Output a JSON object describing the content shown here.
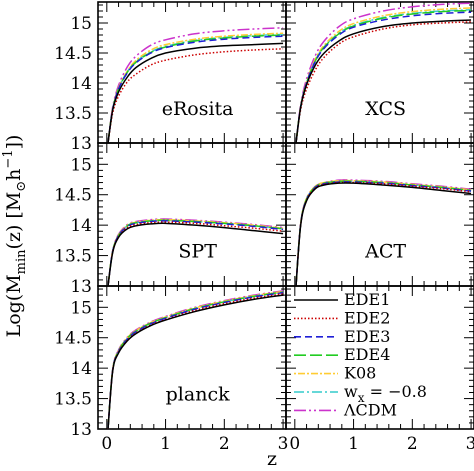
{
  "chart_data": {
    "type": "line",
    "ylabel": "Log(M_min(z) [M_⊙h⁻¹])",
    "ylabel_parts": {
      "pre": "Log(M",
      "sub": "min",
      "mid": "(z)  [M",
      "sun": "⊙",
      "h": "h",
      "sup": "−1",
      "post": "])"
    },
    "xlabel": "z",
    "xlim": [
      -0.15,
      3.05
    ],
    "ylim": [
      13.0,
      15.35
    ],
    "x_ticks": [
      "0",
      "1",
      "2",
      "3"
    ],
    "y_ticks": [
      "13",
      "13.5",
      "14",
      "14.5",
      "15"
    ],
    "grid": false,
    "legend_location": "bottom-right panel",
    "series_styles": [
      {
        "name": "EDE1",
        "color": "#000000",
        "dash": ""
      },
      {
        "name": "EDE2",
        "color": "#cc0000",
        "dash": "1.5,2"
      },
      {
        "name": "EDE3",
        "color": "#1f1fd6",
        "dash": "7,4"
      },
      {
        "name": "EDE4",
        "color": "#22cc22",
        "dash": "12,4"
      },
      {
        "name": "K08",
        "color": "#ffcc33",
        "dash": "2,2,7,2"
      },
      {
        "name": "w_x = −0.8",
        "color": "#33cccc",
        "dash": "10,3,2,3"
      },
      {
        "name": "ΛCDM",
        "color": "#cc33cc",
        "dash": "12,3,2,3,2,3"
      }
    ],
    "legend": {
      "EDE1": "EDE1",
      "EDE2": "EDE2",
      "EDE3": "EDE3",
      "EDE4": "EDE4",
      "K08": "K08",
      "wx_pre": "w",
      "wx_sub": "x",
      "wx_post": " = −0.8",
      "lcdm": "ΛCDM"
    },
    "panels": [
      {
        "label": "eRosita",
        "x": [
          0.02,
          0.1,
          0.2,
          0.35,
          0.5,
          0.75,
          1.0,
          1.5,
          2.0,
          2.5,
          3.0
        ],
        "series": [
          {
            "name": "EDE1",
            "values": [
              13.0,
              13.55,
              13.85,
              14.1,
              14.26,
              14.41,
              14.5,
              14.58,
              14.62,
              14.64,
              14.66
            ]
          },
          {
            "name": "EDE2",
            "values": [
              13.0,
              13.5,
              13.78,
              14.02,
              14.15,
              14.3,
              14.38,
              14.47,
              14.52,
              14.55,
              14.57
            ]
          },
          {
            "name": "EDE3",
            "values": [
              13.0,
              13.56,
              13.9,
              14.17,
              14.34,
              14.5,
              14.59,
              14.68,
              14.73,
              14.76,
              14.78
            ]
          },
          {
            "name": "EDE4",
            "values": [
              13.0,
              13.56,
              13.9,
              14.18,
              14.35,
              14.51,
              14.6,
              14.7,
              14.75,
              14.78,
              14.8
            ]
          },
          {
            "name": "K08",
            "values": [
              13.0,
              13.57,
              13.92,
              14.2,
              14.38,
              14.55,
              14.64,
              14.73,
              14.78,
              14.81,
              14.83
            ]
          },
          {
            "name": "w_x = −0.8",
            "values": [
              13.0,
              13.56,
              13.91,
              14.19,
              14.36,
              14.52,
              14.61,
              14.71,
              14.76,
              14.79,
              14.81
            ]
          },
          {
            "name": "ΛCDM",
            "values": [
              13.0,
              13.6,
              13.96,
              14.27,
              14.45,
              14.63,
              14.72,
              14.82,
              14.87,
              14.9,
              14.92
            ]
          }
        ]
      },
      {
        "label": "XCS",
        "x": [
          0.02,
          0.1,
          0.2,
          0.35,
          0.5,
          0.75,
          1.0,
          1.5,
          2.0,
          2.5,
          3.0
        ],
        "series": [
          {
            "name": "EDE1",
            "values": [
              13.0,
              13.6,
              13.97,
              14.3,
              14.5,
              14.7,
              14.82,
              14.94,
              15.0,
              15.03,
              15.05
            ]
          },
          {
            "name": "EDE2",
            "values": [
              13.0,
              13.56,
              13.9,
              14.22,
              14.43,
              14.65,
              14.77,
              14.9,
              14.97,
              15.0,
              15.02
            ]
          },
          {
            "name": "EDE3",
            "values": [
              13.0,
              13.6,
              14.0,
              14.36,
              14.58,
              14.8,
              14.93,
              15.05,
              15.12,
              15.16,
              15.18
            ]
          },
          {
            "name": "EDE4",
            "values": [
              13.0,
              13.6,
              14.0,
              14.37,
              14.6,
              14.82,
              14.95,
              15.08,
              15.15,
              15.19,
              15.21
            ]
          },
          {
            "name": "K08",
            "values": [
              13.0,
              13.61,
              14.02,
              14.4,
              14.63,
              14.86,
              14.99,
              15.12,
              15.19,
              15.23,
              15.25
            ]
          },
          {
            "name": "w_x = −0.8",
            "values": [
              13.0,
              13.6,
              14.01,
              14.38,
              14.61,
              14.83,
              14.96,
              15.09,
              15.16,
              15.2,
              15.22
            ]
          },
          {
            "name": "ΛCDM",
            "values": [
              13.0,
              13.64,
              14.07,
              14.46,
              14.7,
              14.94,
              15.07,
              15.2,
              15.27,
              15.31,
              15.33
            ]
          }
        ]
      },
      {
        "label": "SPT",
        "x": [
          0.02,
          0.1,
          0.2,
          0.35,
          0.5,
          0.75,
          1.0,
          1.5,
          2.0,
          2.5,
          3.0
        ],
        "series": [
          {
            "name": "EDE1",
            "values": [
              13.0,
              13.55,
              13.8,
              13.94,
              13.99,
              14.02,
              14.03,
              14.0,
              13.96,
              13.91,
              13.86
            ]
          },
          {
            "name": "EDE2",
            "values": [
              13.0,
              13.56,
              13.81,
              13.96,
              14.01,
              14.04,
              14.05,
              14.03,
              13.99,
              13.95,
              13.9
            ]
          },
          {
            "name": "EDE3",
            "values": [
              13.0,
              13.57,
              13.83,
              13.98,
              14.03,
              14.06,
              14.07,
              14.05,
              14.02,
              13.98,
              13.93
            ]
          },
          {
            "name": "EDE4",
            "values": [
              13.0,
              13.57,
              13.83,
              13.99,
              14.04,
              14.07,
              14.08,
              14.06,
              14.03,
              13.99,
              13.94
            ]
          },
          {
            "name": "K08",
            "values": [
              13.0,
              13.58,
              13.84,
              14.0,
              14.05,
              14.08,
              14.09,
              14.07,
              14.04,
              14.0,
              13.95
            ]
          },
          {
            "name": "w_x = −0.8",
            "values": [
              13.0,
              13.57,
              13.83,
              13.99,
              14.04,
              14.07,
              14.08,
              14.06,
              14.03,
              13.99,
              13.94
            ]
          },
          {
            "name": "ΛCDM",
            "values": [
              13.0,
              13.58,
              13.85,
              14.01,
              14.06,
              14.09,
              14.1,
              14.08,
              14.05,
              14.01,
              13.96
            ]
          }
        ]
      },
      {
        "label": "ACT",
        "x": [
          0.02,
          0.1,
          0.2,
          0.35,
          0.5,
          0.75,
          1.0,
          1.5,
          2.0,
          2.5,
          3.0
        ],
        "series": [
          {
            "name": "EDE1",
            "values": [
              13.0,
              14.0,
              14.4,
              14.6,
              14.66,
              14.69,
              14.69,
              14.66,
              14.62,
              14.57,
              14.52
            ]
          },
          {
            "name": "EDE2",
            "values": [
              13.0,
              14.01,
              14.41,
              14.61,
              14.67,
              14.7,
              14.7,
              14.68,
              14.64,
              14.6,
              14.55
            ]
          },
          {
            "name": "EDE3",
            "values": [
              13.0,
              14.02,
              14.42,
              14.62,
              14.68,
              14.71,
              14.71,
              14.69,
              14.65,
              14.61,
              14.56
            ]
          },
          {
            "name": "EDE4",
            "values": [
              13.0,
              14.02,
              14.43,
              14.63,
              14.69,
              14.72,
              14.72,
              14.7,
              14.66,
              14.62,
              14.57
            ]
          },
          {
            "name": "K08",
            "values": [
              13.0,
              14.03,
              14.44,
              14.64,
              14.7,
              14.73,
              14.73,
              14.71,
              14.67,
              14.63,
              14.58
            ]
          },
          {
            "name": "w_x = −0.8",
            "values": [
              13.0,
              14.02,
              14.43,
              14.63,
              14.69,
              14.72,
              14.72,
              14.7,
              14.66,
              14.62,
              14.57
            ]
          },
          {
            "name": "ΛCDM",
            "values": [
              13.0,
              14.03,
              14.44,
              14.64,
              14.7,
              14.74,
              14.74,
              14.72,
              14.68,
              14.64,
              14.59
            ]
          }
        ]
      },
      {
        "label": "planck",
        "x": [
          0.02,
          0.1,
          0.2,
          0.35,
          0.5,
          0.75,
          1.0,
          1.5,
          2.0,
          2.5,
          3.0
        ],
        "series": [
          {
            "name": "EDE1",
            "values": [
              13.0,
              13.95,
              14.25,
              14.45,
              14.57,
              14.7,
              14.79,
              14.93,
              15.04,
              15.13,
              15.2
            ]
          },
          {
            "name": "EDE2",
            "values": [
              13.0,
              13.96,
              14.26,
              14.46,
              14.58,
              14.71,
              14.8,
              14.95,
              15.06,
              15.15,
              15.22
            ]
          },
          {
            "name": "EDE3",
            "values": [
              13.0,
              13.97,
              14.27,
              14.48,
              14.6,
              14.73,
              14.82,
              14.97,
              15.08,
              15.17,
              15.24
            ]
          },
          {
            "name": "EDE4",
            "values": [
              13.0,
              13.97,
              14.28,
              14.49,
              14.61,
              14.74,
              14.83,
              14.98,
              15.09,
              15.18,
              15.25
            ]
          },
          {
            "name": "K08",
            "values": [
              13.0,
              13.98,
              14.29,
              14.5,
              14.62,
              14.75,
              14.84,
              14.99,
              15.1,
              15.19,
              15.26
            ]
          },
          {
            "name": "w_x = −0.8",
            "values": [
              13.0,
              13.97,
              14.28,
              14.49,
              14.61,
              14.74,
              14.83,
              14.98,
              15.09,
              15.18,
              15.25
            ]
          },
          {
            "name": "ΛCDM",
            "values": [
              13.0,
              13.98,
              14.3,
              14.51,
              14.63,
              14.76,
              14.85,
              15.0,
              15.11,
              15.2,
              15.27
            ]
          }
        ]
      }
    ]
  }
}
